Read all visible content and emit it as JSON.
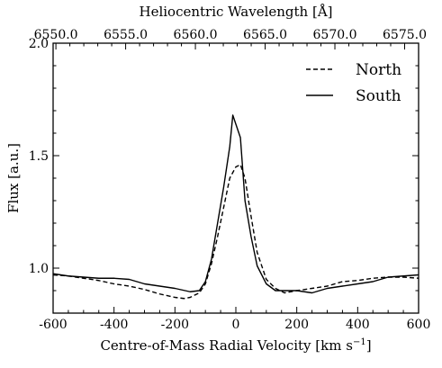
{
  "chart_data": {
    "type": "line",
    "title": "",
    "xlabel": "Centre-of-Mass Radial Velocity [km s",
    "xlabel_sup": "−1",
    "xlabel_close": "]",
    "ylabel": "Flux [a.u.]",
    "top_xlabel": "Heliocentric Wavelength [Å]",
    "xlim": [
      -600,
      600
    ],
    "ylim": [
      0.8,
      2.0
    ],
    "top_xlim": [
      6549.8,
      6576.0
    ],
    "x_ticks": [
      -600,
      -400,
      -200,
      0,
      200,
      400,
      600
    ],
    "x_tick_labels": [
      "-600",
      "-400",
      "-200",
      "0",
      "200",
      "400",
      "600"
    ],
    "y_ticks": [
      1.0,
      1.5,
      2.0
    ],
    "y_tick_labels": [
      "1.0",
      "1.5",
      "2.0"
    ],
    "top_ticks": [
      6550.0,
      6555.0,
      6560.0,
      6565.0,
      6570.0,
      6575.0
    ],
    "top_tick_labels": [
      "6550.0",
      "6555.0",
      "6560.0",
      "6565.0",
      "6570.0",
      "6575.0"
    ],
    "grid": false,
    "legend_position": "top-right",
    "series": [
      {
        "name": "North",
        "style": "dashed",
        "x": [
          -600,
          -550,
          -500,
          -450,
          -400,
          -350,
          -300,
          -250,
          -200,
          -170,
          -150,
          -120,
          -100,
          -80,
          -60,
          -40,
          -20,
          0,
          15,
          30,
          50,
          70,
          100,
          130,
          160,
          200,
          250,
          300,
          350,
          400,
          450,
          500,
          550,
          600
        ],
        "y": [
          0.97,
          0.965,
          0.955,
          0.945,
          0.93,
          0.92,
          0.905,
          0.885,
          0.87,
          0.865,
          0.87,
          0.89,
          0.93,
          1.02,
          1.14,
          1.27,
          1.4,
          1.45,
          1.46,
          1.4,
          1.23,
          1.07,
          0.95,
          0.91,
          0.89,
          0.9,
          0.91,
          0.92,
          0.94,
          0.945,
          0.955,
          0.96,
          0.96,
          0.955
        ]
      },
      {
        "name": "South",
        "style": "solid",
        "x": [
          -600,
          -550,
          -500,
          -450,
          -400,
          -350,
          -300,
          -250,
          -200,
          -150,
          -120,
          -100,
          -80,
          -60,
          -40,
          -20,
          -10,
          0,
          15,
          30,
          50,
          70,
          100,
          130,
          160,
          200,
          250,
          300,
          350,
          400,
          450,
          500,
          550,
          600
        ],
        "y": [
          0.975,
          0.965,
          0.96,
          0.955,
          0.955,
          0.95,
          0.93,
          0.92,
          0.91,
          0.895,
          0.9,
          0.94,
          1.04,
          1.2,
          1.36,
          1.54,
          1.68,
          1.64,
          1.58,
          1.3,
          1.14,
          1.01,
          0.93,
          0.9,
          0.9,
          0.9,
          0.89,
          0.91,
          0.92,
          0.93,
          0.94,
          0.96,
          0.965,
          0.97
        ]
      }
    ]
  }
}
